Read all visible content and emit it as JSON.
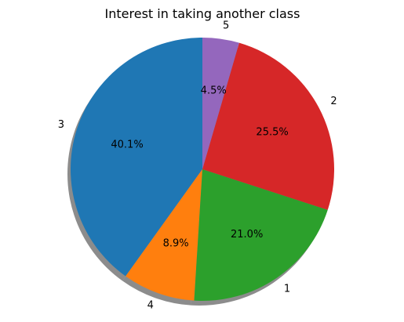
{
  "chart_data": {
    "type": "pie",
    "title": "Interest in taking another class",
    "slices": [
      {
        "label": "3",
        "value": 40.1,
        "pct_text": "40.1%",
        "color": "#1f77b4"
      },
      {
        "label": "4",
        "value": 8.9,
        "pct_text": "8.9%",
        "color": "#ff7f0e"
      },
      {
        "label": "1",
        "value": 21.0,
        "pct_text": "21.0%",
        "color": "#2ca02c"
      },
      {
        "label": "2",
        "value": 25.5,
        "pct_text": "25.5%",
        "color": "#d62728"
      },
      {
        "label": "5",
        "value": 4.5,
        "pct_text": "4.5%",
        "color": "#9467bd"
      }
    ],
    "start_angle_deg": 90,
    "direction": "counterclockwise",
    "shadow": true,
    "legend": "none",
    "grid": false
  }
}
